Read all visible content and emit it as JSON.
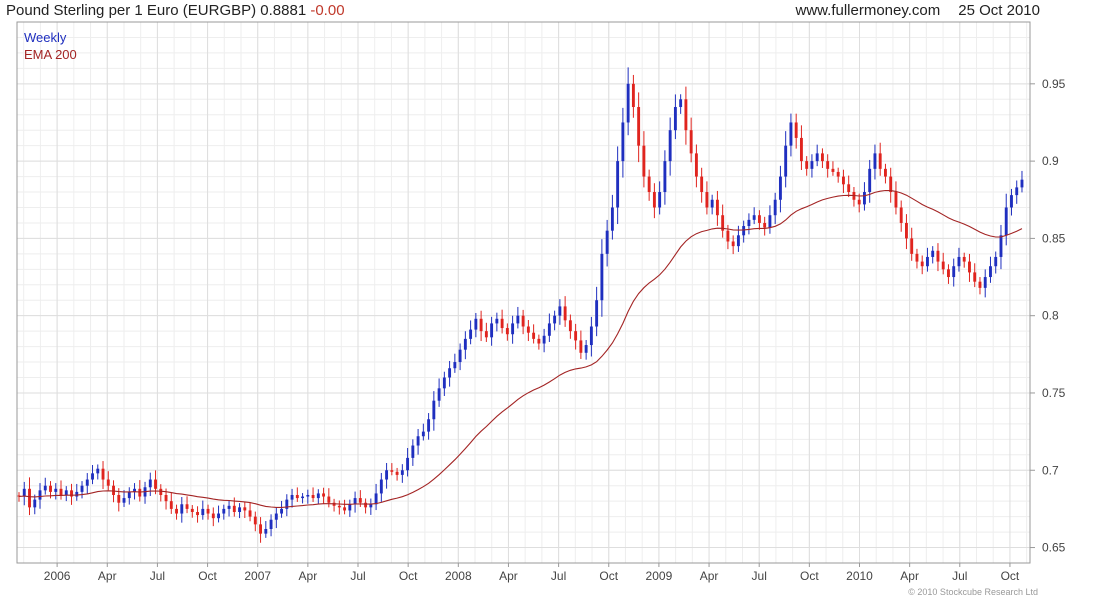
{
  "header": {
    "title": "Pound Sterling per 1 Euro (EURGBP) 0.8881",
    "change": "-0.00",
    "site": "www.fullermoney.com",
    "date": "25 Oct 2010"
  },
  "copyright": "© 2010 Stockcube Research Ltd",
  "colors": {
    "up": "#1f2fbf",
    "down": "#e0241e",
    "ema": "#a32424",
    "grid": "#dedede"
  },
  "chart_data": {
    "type": "candlestick",
    "legend": [
      "Weekly",
      "EMA 200"
    ],
    "ylim": [
      0.64,
      0.99
    ],
    "yticks": [
      {
        "v": 0.65,
        "label": "0.65"
      },
      {
        "v": 0.7,
        "label": "0.7"
      },
      {
        "v": 0.75,
        "label": "0.75"
      },
      {
        "v": 0.8,
        "label": "0.8"
      },
      {
        "v": 0.85,
        "label": "0.85"
      },
      {
        "v": 0.9,
        "label": "0.9"
      },
      {
        "v": 0.95,
        "label": "0.95"
      }
    ],
    "xrange": [
      2005.8,
      2010.85
    ],
    "xticks": [
      {
        "t": 2006.0,
        "label": "2006"
      },
      {
        "t": 2006.25,
        "label": "Apr"
      },
      {
        "t": 2006.5,
        "label": "Jul"
      },
      {
        "t": 2006.75,
        "label": "Oct"
      },
      {
        "t": 2007.0,
        "label": "2007"
      },
      {
        "t": 2007.25,
        "label": "Apr"
      },
      {
        "t": 2007.5,
        "label": "Jul"
      },
      {
        "t": 2007.75,
        "label": "Oct"
      },
      {
        "t": 2008.0,
        "label": "2008"
      },
      {
        "t": 2008.25,
        "label": "Apr"
      },
      {
        "t": 2008.5,
        "label": "Jul"
      },
      {
        "t": 2008.75,
        "label": "Oct"
      },
      {
        "t": 2009.0,
        "label": "2009"
      },
      {
        "t": 2009.25,
        "label": "Apr"
      },
      {
        "t": 2009.5,
        "label": "Jul"
      },
      {
        "t": 2009.75,
        "label": "Oct"
      },
      {
        "t": 2010.0,
        "label": "2010"
      },
      {
        "t": 2010.25,
        "label": "Apr"
      },
      {
        "t": 2010.5,
        "label": "Jul"
      },
      {
        "t": 2010.75,
        "label": "Oct"
      }
    ],
    "closes": [
      0.683,
      0.688,
      0.676,
      0.681,
      0.687,
      0.69,
      0.686,
      0.688,
      0.684,
      0.687,
      0.683,
      0.686,
      0.69,
      0.694,
      0.698,
      0.701,
      0.694,
      0.69,
      0.684,
      0.679,
      0.682,
      0.686,
      0.688,
      0.683,
      0.689,
      0.694,
      0.688,
      0.684,
      0.68,
      0.675,
      0.672,
      0.678,
      0.675,
      0.673,
      0.671,
      0.675,
      0.672,
      0.669,
      0.672,
      0.675,
      0.677,
      0.673,
      0.676,
      0.674,
      0.67,
      0.665,
      0.659,
      0.662,
      0.668,
      0.672,
      0.675,
      0.681,
      0.684,
      0.682,
      0.683,
      0.684,
      0.682,
      0.685,
      0.683,
      0.679,
      0.677,
      0.676,
      0.674,
      0.678,
      0.682,
      0.679,
      0.676,
      0.678,
      0.685,
      0.694,
      0.7,
      0.699,
      0.697,
      0.7,
      0.708,
      0.716,
      0.722,
      0.725,
      0.733,
      0.745,
      0.753,
      0.76,
      0.766,
      0.77,
      0.778,
      0.785,
      0.791,
      0.798,
      0.79,
      0.786,
      0.795,
      0.798,
      0.792,
      0.788,
      0.795,
      0.8,
      0.793,
      0.789,
      0.785,
      0.782,
      0.787,
      0.795,
      0.8,
      0.806,
      0.797,
      0.79,
      0.784,
      0.776,
      0.781,
      0.793,
      0.81,
      0.84,
      0.855,
      0.87,
      0.9,
      0.925,
      0.95,
      0.935,
      0.91,
      0.89,
      0.88,
      0.87,
      0.88,
      0.9,
      0.92,
      0.935,
      0.94,
      0.92,
      0.905,
      0.89,
      0.88,
      0.87,
      0.875,
      0.865,
      0.855,
      0.848,
      0.845,
      0.852,
      0.858,
      0.862,
      0.865,
      0.86,
      0.857,
      0.865,
      0.875,
      0.89,
      0.91,
      0.925,
      0.915,
      0.9,
      0.895,
      0.9,
      0.905,
      0.9,
      0.895,
      0.893,
      0.89,
      0.885,
      0.88,
      0.875,
      0.872,
      0.88,
      0.895,
      0.905,
      0.895,
      0.89,
      0.88,
      0.87,
      0.86,
      0.85,
      0.84,
      0.835,
      0.832,
      0.838,
      0.842,
      0.835,
      0.83,
      0.825,
      0.832,
      0.838,
      0.835,
      0.828,
      0.822,
      0.818,
      0.825,
      0.832,
      0.838,
      0.852,
      0.87,
      0.878,
      0.883,
      0.888
    ]
  }
}
